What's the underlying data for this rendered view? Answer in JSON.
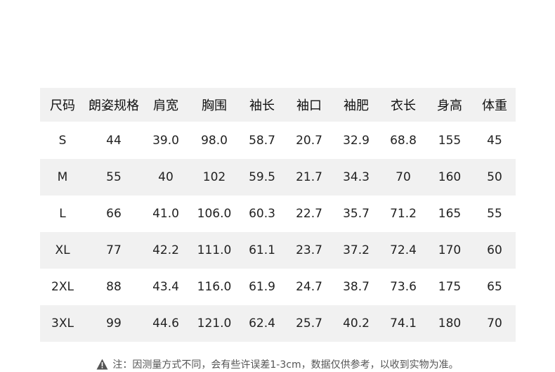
{
  "table": {
    "headers": [
      "尺码",
      "朗姿规格",
      "肩宽",
      "胸围",
      "袖长",
      "袖口",
      "袖肥",
      "衣长",
      "身高",
      "体重"
    ],
    "rows": [
      [
        "S",
        "44",
        "39.0",
        "98.0",
        "58.7",
        "20.7",
        "32.9",
        "68.8",
        "155",
        "45"
      ],
      [
        "M",
        "55",
        "40",
        "102",
        "59.5",
        "21.7",
        "34.3",
        "70",
        "160",
        "50"
      ],
      [
        "L",
        "66",
        "41.0",
        "106.0",
        "60.3",
        "22.7",
        "35.7",
        "71.2",
        "165",
        "55"
      ],
      [
        "XL",
        "77",
        "42.2",
        "111.0",
        "61.1",
        "23.7",
        "37.2",
        "72.4",
        "170",
        "60"
      ],
      [
        "2XL",
        "88",
        "43.4",
        "116.0",
        "61.9",
        "24.7",
        "38.7",
        "73.6",
        "175",
        "65"
      ],
      [
        "3XL",
        "99",
        "44.6",
        "121.0",
        "62.4",
        "25.7",
        "40.2",
        "74.1",
        "180",
        "70"
      ]
    ]
  },
  "note": {
    "icon": "warning-icon",
    "text": "注：因测量方式不同，会有些许误差1-3cm，数据仅供参考，以收到实物为准。"
  }
}
